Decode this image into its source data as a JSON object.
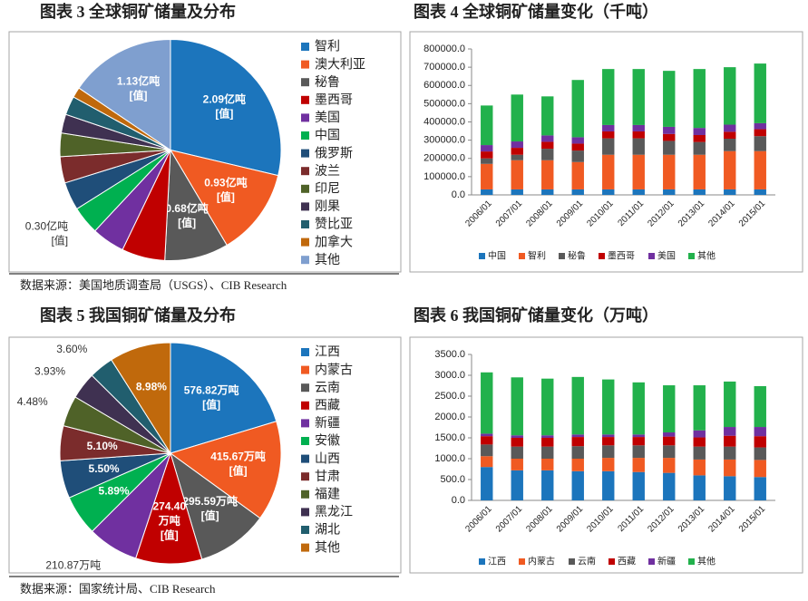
{
  "chart_data": [
    {
      "type": "pie",
      "title": "图表 3 全球铜矿储量及分布",
      "categories": [
        "智利",
        "澳大利亚",
        "秘鲁",
        "墨西哥",
        "美国",
        "中国",
        "俄罗斯",
        "波兰",
        "印尼",
        "刚果",
        "赞比亚",
        "加拿大",
        "其他"
      ],
      "values": [
        2.09,
        0.93,
        0.68,
        0.46,
        0.35,
        0.3,
        0.3,
        0.28,
        0.25,
        0.2,
        0.2,
        0.11,
        1.13
      ],
      "value_labels": [
        [
          "2.09亿吨",
          "[值]"
        ],
        [
          "0.93亿吨",
          "[值]"
        ],
        [
          "0.68亿吨",
          "[值]"
        ],
        null,
        null,
        [
          "0.30亿吨",
          "[值]"
        ],
        null,
        null,
        null,
        null,
        null,
        null,
        [
          "1.13亿吨",
          "[值]"
        ]
      ],
      "colors": [
        "#1c75bc",
        "#f05a22",
        "#595959",
        "#c00000",
        "#7030a0",
        "#00b050",
        "#1f4e79",
        "#7b2c2c",
        "#4f6228",
        "#3f3151",
        "#215e6e",
        "#c0690c",
        "#7f9fcf"
      ]
    },
    {
      "type": "bar",
      "stacked": true,
      "title": "图表 4 全球铜矿储量变化（千吨）",
      "categories": [
        "2006/01",
        "2007/01",
        "2008/01",
        "2009/01",
        "2010/01",
        "2011/01",
        "2012/01",
        "2013/01",
        "2014/01",
        "2015/01"
      ],
      "series": [
        {
          "name": "中国",
          "color": "#1c75bc",
          "values": [
            30000,
            30000,
            30000,
            30000,
            30000,
            30000,
            30000,
            30000,
            30000,
            30000
          ]
        },
        {
          "name": "智利",
          "color": "#f05a22",
          "values": [
            140000,
            160000,
            160000,
            150000,
            190000,
            190000,
            190000,
            190000,
            210000,
            210000
          ]
        },
        {
          "name": "秘鲁",
          "color": "#595959",
          "values": [
            30000,
            30000,
            63000,
            63000,
            90000,
            90000,
            76000,
            70000,
            68000,
            82000
          ]
        },
        {
          "name": "墨西哥",
          "color": "#c00000",
          "values": [
            38000,
            38000,
            38000,
            38000,
            38000,
            38000,
            38000,
            38000,
            38000,
            38000
          ]
        },
        {
          "name": "美国",
          "color": "#7030a0",
          "values": [
            35000,
            35000,
            35000,
            35000,
            35000,
            35000,
            39000,
            39000,
            39000,
            33000
          ]
        },
        {
          "name": "其他",
          "color": "#22b14c",
          "values": [
            217000,
            257000,
            214000,
            314000,
            307000,
            307000,
            307000,
            323000,
            315000,
            327000
          ]
        }
      ],
      "ylim": [
        0,
        800000
      ],
      "yticks": [
        {
          "value": 0,
          "label": "0.0"
        },
        {
          "value": 100000,
          "label": "100000.0"
        },
        {
          "value": 200000,
          "label": "200000.0"
        },
        {
          "value": 300000,
          "label": "300000.0"
        },
        {
          "value": 400000,
          "label": "400000.0"
        },
        {
          "value": 500000,
          "label": "500000.0"
        },
        {
          "value": 600000,
          "label": "600000.0"
        },
        {
          "value": 700000,
          "label": "700000.0"
        },
        {
          "value": 800000,
          "label": "800000.0"
        }
      ]
    },
    {
      "type": "pie",
      "title": "图表 5 我国铜矿储量及分布",
      "categories": [
        "江西",
        "内蒙古",
        "云南",
        "西藏",
        "新疆",
        "安徽",
        "山西",
        "甘肃",
        "福建",
        "黑龙江",
        "湖北",
        "其他"
      ],
      "values": [
        576.82,
        415.67,
        295.59,
        274.4,
        210.87,
        167.07,
        156.0,
        144.66,
        127.07,
        111.47,
        102.11,
        254.71
      ],
      "value_labels": [
        [
          "576.82万吨",
          "[值]"
        ],
        [
          "415.67万吨",
          "[值]"
        ],
        [
          "295.59万吨",
          "[值]"
        ],
        [
          "274.40",
          "万吨",
          "[值]"
        ],
        [
          "210.87万吨"
        ],
        [
          "5.89%"
        ],
        [
          "5.50%"
        ],
        [
          "5.10%"
        ],
        [
          "4.48%"
        ],
        [
          "3.93%"
        ],
        [
          "3.60%"
        ],
        [
          "8.98%"
        ]
      ],
      "colors": [
        "#1c75bc",
        "#f05a22",
        "#595959",
        "#c00000",
        "#7030a0",
        "#00b050",
        "#1f4e79",
        "#7b2c2c",
        "#4f6228",
        "#3f3151",
        "#215e6e",
        "#c0690c"
      ]
    },
    {
      "type": "bar",
      "stacked": true,
      "title": "图表 6 我国铜矿储量变化（万吨）",
      "categories": [
        "2006/01",
        "2007/01",
        "2008/01",
        "2009/01",
        "2010/01",
        "2011/01",
        "2012/01",
        "2013/01",
        "2014/01",
        "2015/01"
      ],
      "series": [
        {
          "name": "江西",
          "color": "#1c75bc",
          "values": [
            800,
            720,
            720,
            700,
            700,
            680,
            660,
            600,
            580,
            560
          ]
        },
        {
          "name": "内蒙古",
          "color": "#f05a22",
          "values": [
            260,
            280,
            280,
            300,
            320,
            340,
            360,
            380,
            400,
            410
          ]
        },
        {
          "name": "云南",
          "color": "#595959",
          "values": [
            280,
            290,
            290,
            300,
            300,
            300,
            300,
            310,
            310,
            300
          ]
        },
        {
          "name": "西藏",
          "color": "#c00000",
          "values": [
            200,
            210,
            210,
            220,
            200,
            200,
            210,
            220,
            260,
            270
          ]
        },
        {
          "name": "新疆",
          "color": "#7030a0",
          "values": [
            60,
            60,
            60,
            60,
            60,
            60,
            100,
            170,
            210,
            220
          ]
        },
        {
          "name": "其他",
          "color": "#22b14c",
          "values": [
            1470,
            1390,
            1360,
            1380,
            1320,
            1250,
            1130,
            1080,
            1090,
            980
          ]
        }
      ],
      "ylim": [
        0,
        3500
      ],
      "yticks": [
        {
          "value": 0,
          "label": "0.0"
        },
        {
          "value": 500,
          "label": "500.0"
        },
        {
          "value": 1000,
          "label": "1000.0"
        },
        {
          "value": 1500,
          "label": "1500.0"
        },
        {
          "value": 2000,
          "label": "2000.0"
        },
        {
          "value": 2500,
          "label": "2500.0"
        },
        {
          "value": 3000,
          "label": "3000.0"
        },
        {
          "value": 3500,
          "label": "3500.0"
        }
      ]
    }
  ],
  "sources": [
    "数据来源：美国地质调查局（USGS）、CIB Research",
    "数据来源：国家统计局、CIB Research"
  ]
}
